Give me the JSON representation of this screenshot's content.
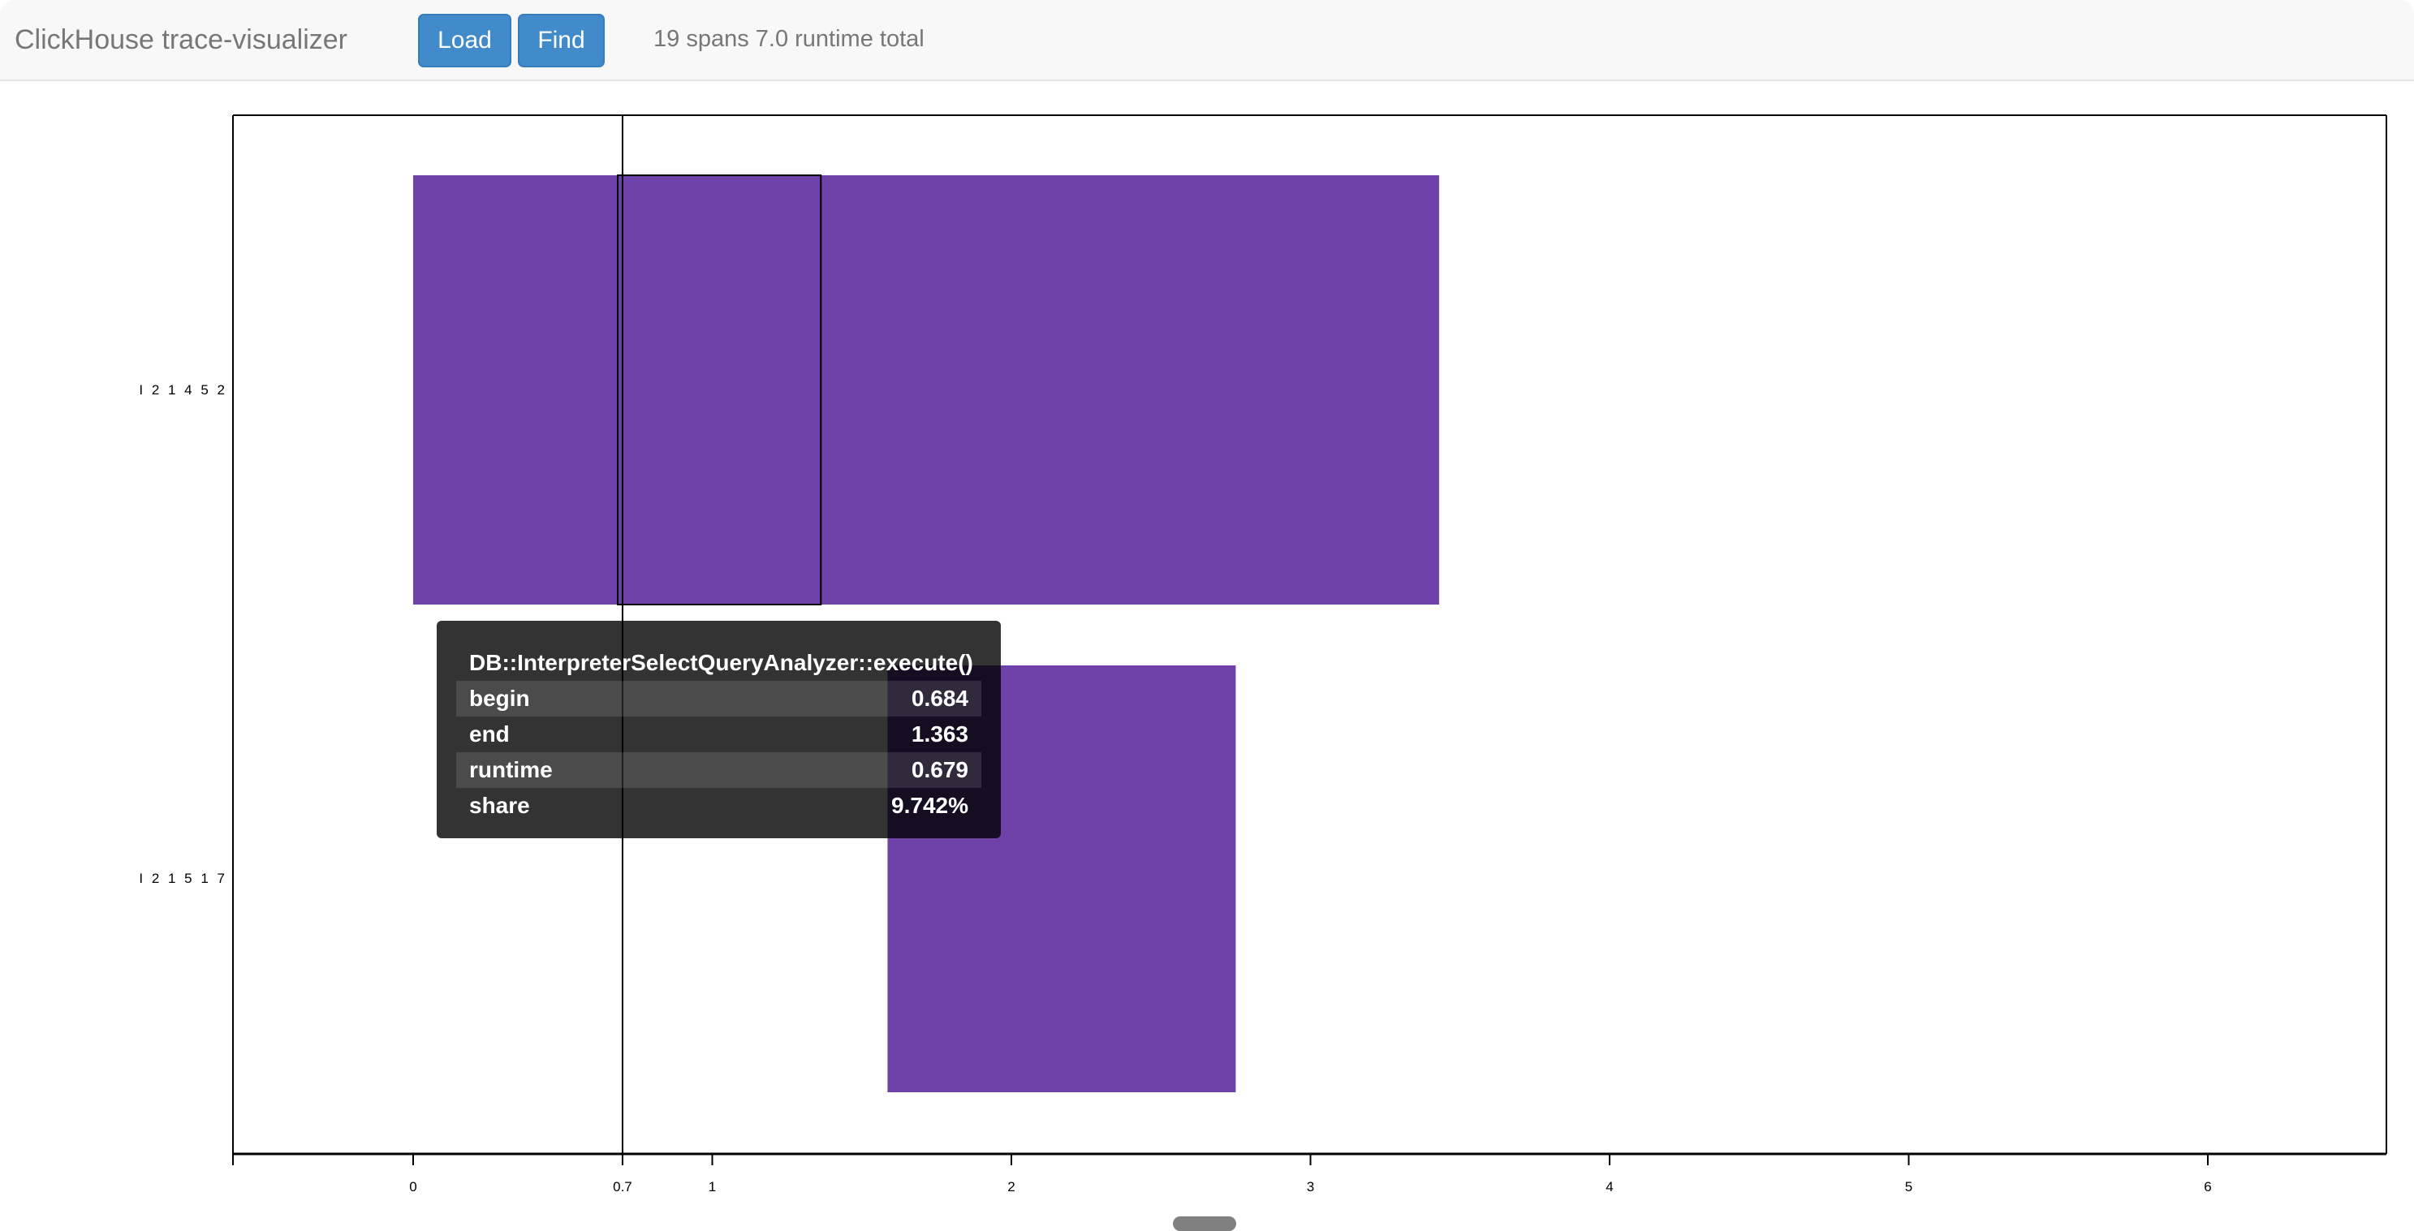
{
  "navbar": {
    "title": "ClickHouse trace-visualizer",
    "load_label": "Load",
    "find_label": "Find",
    "status": "19 spans 7.0 runtime total"
  },
  "colors": {
    "bar": "#6f42a9",
    "button": "#428bca"
  },
  "chart_data": {
    "type": "gantt",
    "xlim": [
      -0.6,
      6.6
    ],
    "x_ticks": [
      "0",
      "0.7",
      "1",
      "2",
      "3",
      "4",
      "5",
      "6"
    ],
    "x_tick_values": [
      0,
      0.7,
      1,
      2,
      3,
      4,
      5,
      6
    ],
    "cursor_x": 0.7,
    "rows": [
      {
        "label": "I 2 1 4 5 2",
        "spans": [
          [
            0,
            3.43
          ]
        ]
      },
      {
        "label": "I 2 1 5 1 7",
        "spans": [
          [
            1.586,
            2.75
          ]
        ]
      }
    ],
    "highlighted": {
      "row": 0,
      "begin": 0.684,
      "end": 1.363
    }
  },
  "tooltip": {
    "title": "DB::InterpreterSelectQueryAnalyzer::execute()",
    "rows": [
      {
        "key": "begin",
        "value": "0.684"
      },
      {
        "key": "end",
        "value": "1.363"
      },
      {
        "key": "runtime",
        "value": "0.679"
      },
      {
        "key": "share",
        "value": "9.742%"
      }
    ]
  }
}
